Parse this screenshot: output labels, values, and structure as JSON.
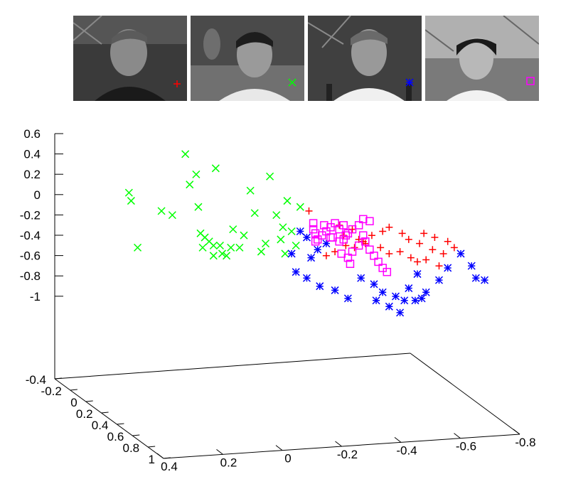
{
  "legend_thumbnails": [
    {
      "subject": "subject-1",
      "marker": "plus",
      "color": "#ff0000"
    },
    {
      "subject": "subject-2",
      "marker": "cross",
      "color": "#00ff00"
    },
    {
      "subject": "subject-3",
      "marker": "star",
      "color": "#0000ff"
    },
    {
      "subject": "subject-4",
      "marker": "square",
      "color": "#ff00ff"
    }
  ],
  "chart_data": {
    "type": "scatter",
    "projection": "3d",
    "title": "",
    "xlabel": "",
    "ylabel": "",
    "zlabel": "",
    "grid": false,
    "axes": {
      "z_ticks": [
        "0.6",
        "0.4",
        "0.2",
        "0",
        "-0.2",
        "-0.4",
        "-0.6",
        "-0.8",
        "-1"
      ],
      "x_ticks": [
        "0.4",
        "0.2",
        "0",
        "-0.2",
        "-0.4",
        "-0.6",
        "-0.8"
      ],
      "y_ticks": [
        "-0.4",
        "-0.2",
        "0",
        "0.2",
        "0.4",
        "0.6",
        "0.8",
        "1"
      ]
    },
    "series": [
      {
        "marker": "plus",
        "color": "#ff0000",
        "points": [
          [
            -0.1,
            -0.16
          ],
          [
            -0.24,
            -0.3
          ],
          [
            -0.3,
            -0.34
          ],
          [
            -0.26,
            -0.4
          ],
          [
            -0.33,
            -0.44
          ],
          [
            -0.36,
            -0.48
          ],
          [
            -0.43,
            -0.52
          ],
          [
            -0.47,
            -0.58
          ],
          [
            -0.52,
            -0.56
          ],
          [
            -0.57,
            -0.62
          ],
          [
            -0.6,
            -0.66
          ],
          [
            -0.64,
            -0.64
          ],
          [
            -0.7,
            -0.7
          ],
          [
            -0.72,
            -0.58
          ],
          [
            -0.61,
            -0.48
          ],
          [
            -0.56,
            -0.44
          ],
          [
            -0.53,
            -0.38
          ],
          [
            -0.47,
            -0.32
          ],
          [
            -0.44,
            -0.36
          ],
          [
            -0.39,
            -0.4
          ],
          [
            -0.35,
            -0.46
          ],
          [
            -0.31,
            -0.52
          ],
          [
            -0.27,
            -0.5
          ],
          [
            -0.22,
            -0.56
          ],
          [
            -0.18,
            -0.6
          ],
          [
            -0.63,
            -0.38
          ],
          [
            -0.68,
            -0.42
          ],
          [
            -0.74,
            -0.46
          ],
          [
            -0.77,
            -0.52
          ],
          [
            -0.67,
            -0.54
          ]
        ]
      },
      {
        "marker": "cross",
        "color": "#00ff00",
        "points": [
          [
            0.73,
            0.02
          ],
          [
            0.72,
            -0.06
          ],
          [
            0.69,
            -0.52
          ],
          [
            0.58,
            -0.16
          ],
          [
            0.53,
            -0.2
          ],
          [
            0.47,
            0.4
          ],
          [
            0.45,
            0.1
          ],
          [
            0.42,
            0.2
          ],
          [
            0.41,
            -0.12
          ],
          [
            0.4,
            -0.38
          ],
          [
            0.39,
            -0.52
          ],
          [
            0.38,
            -0.42
          ],
          [
            0.36,
            -0.46
          ],
          [
            0.34,
            -0.5
          ],
          [
            0.31,
            -0.5
          ],
          [
            0.28,
            -0.6
          ],
          [
            0.33,
            0.26
          ],
          [
            0.25,
            -0.34
          ],
          [
            0.2,
            -0.4
          ],
          [
            0.17,
            0.04
          ],
          [
            0.15,
            -0.18
          ],
          [
            0.12,
            -0.56
          ],
          [
            0.1,
            -0.48
          ],
          [
            0.05,
            -0.2
          ],
          [
            0.02,
            -0.32
          ],
          [
            -0.02,
            -0.36
          ],
          [
            -0.04,
            -0.5
          ],
          [
            0.08,
            0.18
          ],
          [
            0.3,
            -0.58
          ],
          [
            0.22,
            -0.52
          ],
          [
            0.03,
            -0.44
          ],
          [
            0.01,
            -0.58
          ],
          [
            -0.06,
            -0.12
          ],
          [
            0.0,
            -0.06
          ],
          [
            0.26,
            -0.52
          ],
          [
            0.34,
            -0.6
          ]
        ]
      },
      {
        "marker": "star",
        "color": "#0000ff",
        "points": [
          [
            -0.02,
            -0.58
          ],
          [
            -0.06,
            -0.36
          ],
          [
            -0.09,
            -0.42
          ],
          [
            -0.04,
            -0.76
          ],
          [
            -0.09,
            -0.82
          ],
          [
            -0.15,
            -0.9
          ],
          [
            -0.22,
            -0.94
          ],
          [
            -0.34,
            -0.82
          ],
          [
            -0.4,
            -0.88
          ],
          [
            -0.44,
            -0.96
          ],
          [
            -0.5,
            -1.0
          ],
          [
            -0.54,
            -1.04
          ],
          [
            -0.59,
            -1.04
          ],
          [
            -0.62,
            -1.02
          ],
          [
            -0.64,
            -0.96
          ],
          [
            -0.7,
            -0.84
          ],
          [
            -0.74,
            -0.72
          ],
          [
            -0.8,
            -0.58
          ],
          [
            -0.85,
            -0.7
          ],
          [
            -0.87,
            -0.82
          ],
          [
            -0.91,
            -0.84
          ],
          [
            -0.6,
            -0.78
          ],
          [
            -0.56,
            -0.92
          ],
          [
            -0.47,
            -1.1
          ],
          [
            -0.52,
            -1.16
          ],
          [
            -0.41,
            -1.04
          ],
          [
            -0.28,
            -1.02
          ],
          [
            -0.11,
            -0.62
          ],
          [
            -0.14,
            -0.54
          ],
          [
            -0.18,
            -0.48
          ]
        ]
      },
      {
        "marker": "square",
        "color": "#ff00ff",
        "points": [
          [
            -0.12,
            -0.28
          ],
          [
            -0.12,
            -0.34
          ],
          [
            -0.13,
            -0.38
          ],
          [
            -0.14,
            -0.44
          ],
          [
            -0.16,
            -0.4
          ],
          [
            -0.18,
            -0.36
          ],
          [
            -0.2,
            -0.32
          ],
          [
            -0.22,
            -0.28
          ],
          [
            -0.24,
            -0.34
          ],
          [
            -0.21,
            -0.42
          ],
          [
            -0.24,
            -0.46
          ],
          [
            -0.26,
            -0.44
          ],
          [
            -0.28,
            -0.38
          ],
          [
            -0.3,
            -0.34
          ],
          [
            -0.33,
            -0.3
          ],
          [
            -0.35,
            -0.24
          ],
          [
            -0.38,
            -0.26
          ],
          [
            -0.35,
            -0.4
          ],
          [
            -0.36,
            -0.46
          ],
          [
            -0.33,
            -0.5
          ],
          [
            -0.3,
            -0.56
          ],
          [
            -0.28,
            -0.62
          ],
          [
            -0.29,
            -0.68
          ],
          [
            -0.38,
            -0.54
          ],
          [
            -0.4,
            -0.6
          ],
          [
            -0.42,
            -0.66
          ],
          [
            -0.44,
            -0.72
          ],
          [
            -0.46,
            -0.76
          ],
          [
            -0.25,
            -0.58
          ],
          [
            -0.27,
            -0.4
          ],
          [
            -0.17,
            -0.3
          ],
          [
            -0.13,
            -0.46
          ],
          [
            -0.2,
            -0.42
          ],
          [
            -0.26,
            -0.3
          ]
        ]
      }
    ]
  }
}
